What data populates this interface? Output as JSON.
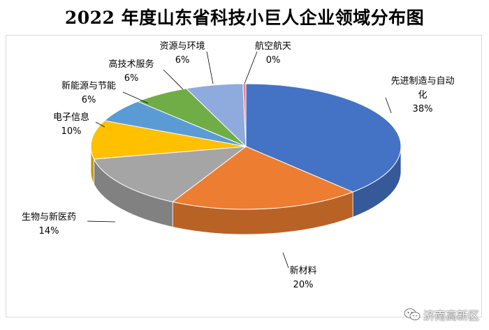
{
  "chart_data": {
    "type": "pie",
    "title": "2022 年度山东省科技小巨人企业领域分布图",
    "slices": [
      {
        "label": "先进制造与自动化",
        "value_label": "38%",
        "value": 38,
        "color": "#4472C4"
      },
      {
        "label": "新材料",
        "value_label": "20%",
        "value": 20,
        "color": "#ED7D31"
      },
      {
        "label": "生物与新医药",
        "value_label": "14%",
        "value": 14,
        "color": "#A5A5A5"
      },
      {
        "label": "电子信息",
        "value_label": "10%",
        "value": 10,
        "color": "#FFC000"
      },
      {
        "label": "新能源与节能",
        "value_label": "6%",
        "value": 6,
        "color": "#5B9BD5"
      },
      {
        "label": "高技术服务",
        "value_label": "6%",
        "value": 6,
        "color": "#70AD47"
      },
      {
        "label": "资源与环境",
        "value_label": "6%",
        "value": 6,
        "color": "#8FAADC"
      },
      {
        "label": "航空航天",
        "value_label": "0%",
        "value": 0.3,
        "color": "#FF7C80"
      }
    ],
    "style": "3d-pie",
    "legend": "none"
  },
  "watermark": {
    "text": "济南高新区"
  }
}
